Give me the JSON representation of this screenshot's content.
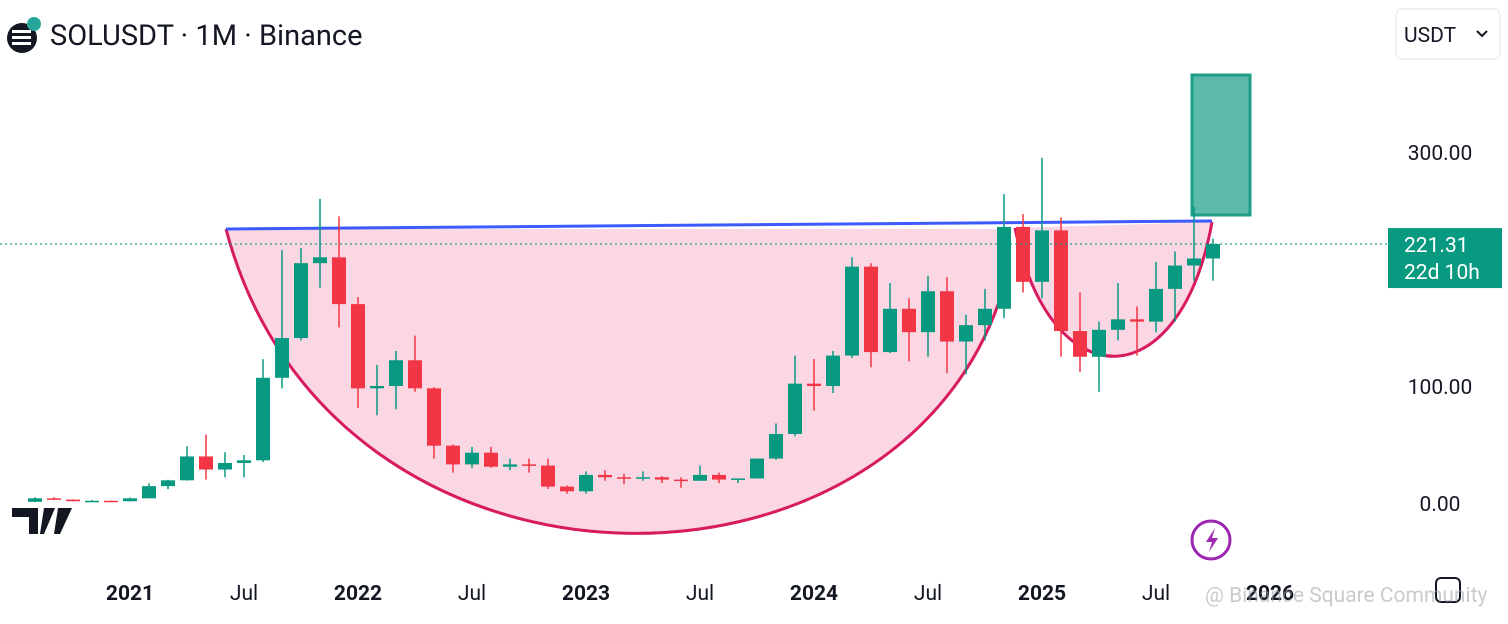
{
  "chart_data": {
    "type": "candlestick",
    "title": "SOLUSDT · 1M · Binance",
    "currency": "USDT",
    "categories": [
      null,
      null,
      null,
      null,
      null,
      "2021",
      null,
      null,
      null,
      null,
      null,
      "Jul",
      null,
      null,
      null,
      null,
      null,
      "2022",
      null,
      null,
      null,
      null,
      null,
      "Jul",
      null,
      null,
      null,
      null,
      null,
      "2023",
      null,
      null,
      null,
      null,
      null,
      "Jul",
      null,
      null,
      null,
      null,
      null,
      "2024",
      null,
      null,
      null,
      null,
      null,
      "Jul",
      null,
      null,
      null,
      null,
      null,
      "2025",
      null,
      null,
      null,
      null,
      null,
      "Jul",
      null,
      null,
      null,
      null,
      null,
      "2026"
    ],
    "open": [
      1.0,
      4.0,
      2.9,
      1.5,
      1.9,
      1.5,
      4.0,
      14.4,
      19.4,
      39.8,
      28.6,
      34.2,
      36.5,
      107,
      141,
      205,
      210,
      170,
      98,
      100,
      122,
      98,
      49,
      33,
      43,
      31,
      33,
      32,
      14,
      10,
      24,
      22,
      21,
      22,
      20,
      19,
      24,
      20,
      21,
      38,
      59,
      102,
      100,
      126,
      202,
      129,
      166,
      146,
      181,
      138,
      152,
      166,
      236,
      189,
      233,
      147,
      125,
      148,
      157,
      155,
      183,
      203,
      209,
      null,
      null,
      null
    ],
    "high": [
      4.9,
      4.9,
      3.2,
      2.5,
      2.2,
      4.6,
      16.8,
      19.9,
      48.5,
      58.6,
      43.4,
      41.0,
      122.9,
      216,
      218,
      260,
      245,
      176,
      118,
      130,
      143,
      99,
      50,
      48,
      48,
      38,
      38,
      38,
      15,
      27,
      28,
      25,
      27,
      23,
      22,
      32,
      26,
      21,
      38,
      68,
      126,
      123,
      130,
      210,
      205,
      188,
      175,
      194,
      193,
      161,
      183,
      264,
      247,
      295,
      244,
      180,
      155,
      188,
      168,
      206,
      215,
      253,
      226,
      null,
      null,
      null
    ],
    "low": [
      0.9,
      2.4,
      1.4,
      1.2,
      1.2,
      1.4,
      4.0,
      11.8,
      19.1,
      20.0,
      22.0,
      21.8,
      35.0,
      98,
      139,
      184,
      150,
      81,
      75,
      80,
      95,
      38,
      26,
      30,
      30,
      28,
      26,
      12,
      8,
      8,
      19,
      16,
      19,
      17,
      13,
      19,
      17,
      17,
      21,
      37,
      57,
      79,
      94,
      124,
      116,
      128,
      121,
      125,
      111,
      110,
      139,
      158,
      180,
      175,
      125,
      112,
      95,
      139,
      126,
      146,
      155,
      190,
      190,
      null,
      null,
      null
    ],
    "close": [
      4.0,
      2.9,
      1.5,
      1.9,
      1.5,
      4.0,
      14.4,
      19.4,
      39.8,
      28.6,
      34.2,
      36.5,
      107,
      141,
      205,
      210,
      170,
      98,
      100,
      122,
      98,
      49,
      33,
      43,
      31,
      33,
      32,
      14,
      10,
      24,
      22,
      21,
      22,
      20,
      19,
      24,
      20,
      21,
      38,
      59,
      102,
      100,
      126,
      202,
      129,
      166,
      146,
      181,
      138,
      152,
      166,
      236,
      189,
      233,
      147,
      125,
      148,
      157,
      155,
      183,
      203,
      209,
      221.31,
      null,
      null,
      null
    ],
    "up_color": "#089981",
    "down_color": "#f23645",
    "ylim": [
      -50,
      415
    ],
    "yticks": [
      {
        "value": 0,
        "label": "0.00"
      },
      {
        "value": 100,
        "label": "100.00"
      },
      {
        "value": 300,
        "label": "300.00"
      }
    ],
    "last_price": 221.31,
    "countdown": "22d 10h",
    "watermark": "@ Binance Square Community"
  }
}
